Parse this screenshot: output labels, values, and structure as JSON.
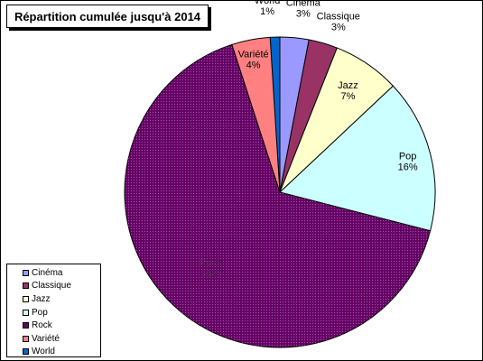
{
  "title": "Répartition cumulée jusqu'à 2014",
  "chart_data": {
    "type": "pie",
    "title": "Répartition cumulée jusqu'à 2014",
    "legend_position": "bottom-left",
    "slices": [
      {
        "name": "Cinéma",
        "value": 3,
        "label": "3%",
        "color": "#9999ff"
      },
      {
        "name": "Classique",
        "value": 3,
        "label": "3%",
        "color": "#993366"
      },
      {
        "name": "Jazz",
        "value": 7,
        "label": "7%",
        "color": "#ffffcc"
      },
      {
        "name": "Pop",
        "value": 16,
        "label": "16%",
        "color": "#ccffff"
      },
      {
        "name": "Rock",
        "value": 66,
        "label": "66%",
        "color": "#660066"
      },
      {
        "name": "Variété",
        "value": 4,
        "label": "4%",
        "color": "#ff8080"
      },
      {
        "name": "World",
        "value": 1,
        "label": "1%",
        "color": "#0066cc"
      }
    ]
  },
  "legend": {
    "items": [
      "Cinéma",
      "Classique",
      "Jazz",
      "Pop",
      "Rock",
      "Variété",
      "World"
    ]
  }
}
